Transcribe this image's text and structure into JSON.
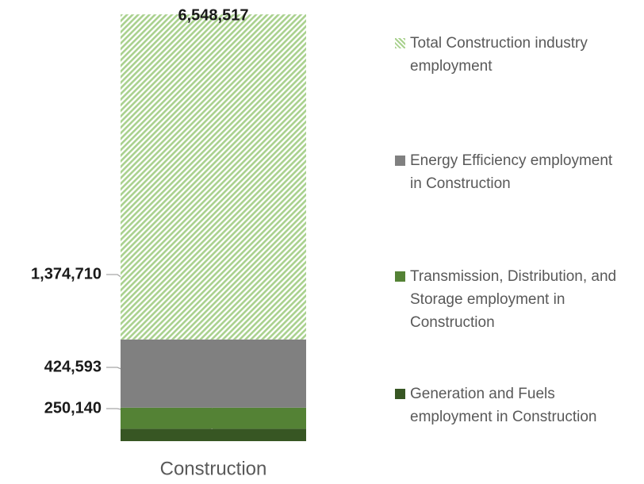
{
  "chart_data": {
    "type": "stacked_bar",
    "categories": [
      "Construction"
    ],
    "series": [
      {
        "name": "Generation and Fuels employment in Construction",
        "color": "#375623",
        "values": [
          250140
        ],
        "value_labels": [
          "250,140"
        ]
      },
      {
        "name": "Transmission, Distribution, and Storage employment in Construction",
        "color": "#548235",
        "values": [
          424593
        ],
        "value_labels": [
          "424,593"
        ]
      },
      {
        "name": "Energy Efficiency employment in Construction",
        "color": "#808080",
        "values": [
          1374710
        ],
        "value_labels": [
          "1,374,710"
        ]
      },
      {
        "name": "Total Construction industry employment",
        "color": "#a9d18e",
        "pattern": "diagonal-stripes",
        "values": [
          6548517
        ],
        "value_labels": [
          "6,548,517"
        ]
      }
    ],
    "ylim": [
      0,
      8600000
    ],
    "legend": "right"
  }
}
